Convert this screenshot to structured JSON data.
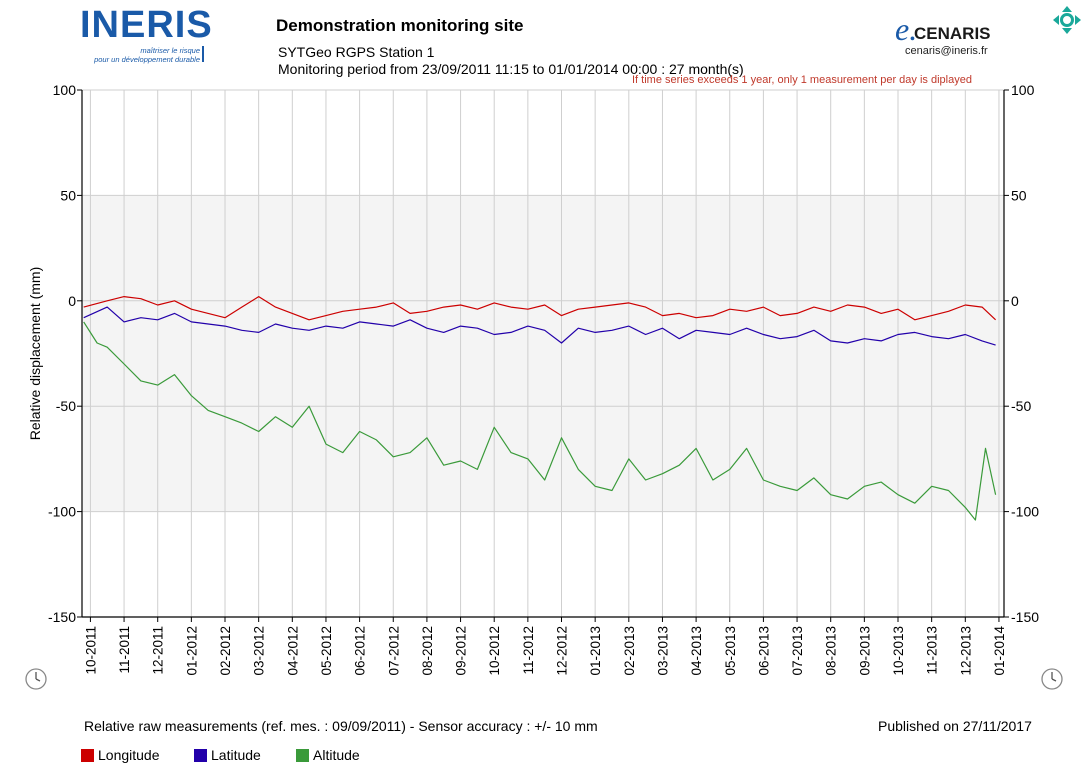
{
  "header": {
    "logo_text": "INERIS",
    "logo_tagline_1": "maîtriser le risque",
    "logo_tagline_2": "pour un développement durable",
    "title": "Demonstration monitoring site",
    "station": "SYTGeo RGPS Station 1",
    "period": "Monitoring period from 23/09/2011 11:15 to 01/01/2014 00:00 : 27 month(s)",
    "warning": "If time series exceeds 1 year, only 1 measurement per day is diplayed",
    "brand_e": "e.",
    "brand_name": "CENARIS",
    "brand_email": "cenaris@ineris.fr"
  },
  "footer": {
    "note": "Relative raw measurements (ref. mes. : 09/09/2011) - Sensor accuracy : +/- 10 mm",
    "published": "Published on 27/11/2017"
  },
  "icons": {
    "move": "move-arrows-icon",
    "clock_left": "clock-icon",
    "clock_right": "clock-icon"
  },
  "colors": {
    "longitude": "#cc0000",
    "latitude": "#2200aa",
    "altitude": "#3a9a3a",
    "band": "#f4f4f4",
    "grid": "#cfcfcf",
    "logo": "#1a5aa8"
  },
  "chart_data": {
    "type": "line",
    "title": "Demonstration monitoring site",
    "xlabel": "",
    "ylabel": "Relative displacement (mm)",
    "ylim": [
      -150,
      100
    ],
    "yticks": [
      100,
      50,
      0,
      -50,
      -100,
      -150
    ],
    "shaded_band": [
      -100,
      50
    ],
    "x_tick_labels": [
      "10-2011",
      "11-2011",
      "12-2011",
      "01-2012",
      "02-2012",
      "03-2012",
      "04-2012",
      "05-2012",
      "06-2012",
      "07-2012",
      "08-2012",
      "09-2012",
      "10-2012",
      "11-2012",
      "12-2012",
      "01-2013",
      "02-2013",
      "03-2013",
      "04-2013",
      "05-2013",
      "06-2013",
      "07-2013",
      "08-2013",
      "09-2013",
      "10-2013",
      "11-2013",
      "12-2013",
      "01-2014"
    ],
    "x_unit": "months since 2011-10-01 (0 = 10-2011, 27 = 01-2014)",
    "xlim": [
      -0.25,
      27.15
    ],
    "legend": [
      "Longitude",
      "Latitude",
      "Altitude"
    ],
    "series": [
      {
        "name": "Longitude",
        "x": [
          -0.2,
          0.5,
          1,
          1.5,
          2,
          2.5,
          3,
          3.5,
          4,
          4.5,
          5,
          5.5,
          6,
          6.5,
          7,
          7.5,
          8,
          8.5,
          9,
          9.5,
          10,
          10.5,
          11,
          11.5,
          12,
          12.5,
          13,
          13.5,
          14,
          14.5,
          15,
          15.5,
          16,
          16.5,
          17,
          17.5,
          18,
          18.5,
          19,
          19.5,
          20,
          20.5,
          21,
          21.5,
          22,
          22.5,
          23,
          23.5,
          24,
          24.5,
          25,
          25.5,
          26,
          26.5,
          26.9
        ],
        "y": [
          -3,
          0,
          2,
          1,
          -2,
          0,
          -4,
          -6,
          -8,
          -3,
          2,
          -3,
          -6,
          -9,
          -7,
          -5,
          -4,
          -3,
          -1,
          -6,
          -5,
          -3,
          -2,
          -4,
          -1,
          -3,
          -4,
          -2,
          -7,
          -4,
          -3,
          -2,
          -1,
          -3,
          -7,
          -6,
          -8,
          -7,
          -4,
          -5,
          -3,
          -7,
          -6,
          -3,
          -5,
          -2,
          -3,
          -6,
          -4,
          -9,
          -7,
          -5,
          -2,
          -3,
          -9
        ]
      },
      {
        "name": "Latitude",
        "x": [
          -0.2,
          0.5,
          1,
          1.5,
          2,
          2.5,
          3,
          3.5,
          4,
          4.5,
          5,
          5.5,
          6,
          6.5,
          7,
          7.5,
          8,
          8.5,
          9,
          9.5,
          10,
          10.5,
          11,
          11.5,
          12,
          12.5,
          13,
          13.5,
          14,
          14.5,
          15,
          15.5,
          16,
          16.5,
          17,
          17.5,
          18,
          18.5,
          19,
          19.5,
          20,
          20.5,
          21,
          21.5,
          22,
          22.5,
          23,
          23.5,
          24,
          24.5,
          25,
          25.5,
          26,
          26.5,
          26.9
        ],
        "y": [
          -8,
          -3,
          -10,
          -8,
          -9,
          -6,
          -10,
          -11,
          -12,
          -14,
          -15,
          -11,
          -13,
          -14,
          -12,
          -13,
          -10,
          -11,
          -12,
          -9,
          -13,
          -15,
          -12,
          -13,
          -16,
          -15,
          -12,
          -14,
          -20,
          -13,
          -15,
          -14,
          -12,
          -16,
          -13,
          -18,
          -14,
          -15,
          -16,
          -13,
          -16,
          -18,
          -17,
          -14,
          -19,
          -20,
          -18,
          -19,
          -16,
          -15,
          -17,
          -18,
          -16,
          -19,
          -21
        ]
      },
      {
        "name": "Altitude",
        "x": [
          -0.2,
          0.2,
          0.5,
          1,
          1.5,
          2,
          2.5,
          3,
          3.5,
          4,
          4.5,
          5,
          5.5,
          6,
          6.5,
          7,
          7.5,
          8,
          8.5,
          9,
          9.5,
          10,
          10.5,
          11,
          11.5,
          12,
          12.5,
          13,
          13.5,
          14,
          14.5,
          15,
          15.5,
          16,
          16.5,
          17,
          17.5,
          18,
          18.5,
          19,
          19.5,
          20,
          20.5,
          21,
          21.5,
          22,
          22.5,
          23,
          23.5,
          24,
          24.5,
          25,
          25.5,
          26,
          26.3,
          26.6,
          26.9
        ],
        "y": [
          -10,
          -20,
          -22,
          -30,
          -38,
          -40,
          -35,
          -45,
          -52,
          -55,
          -58,
          -62,
          -55,
          -60,
          -50,
          -68,
          -72,
          -62,
          -66,
          -74,
          -72,
          -65,
          -78,
          -76,
          -80,
          -60,
          -72,
          -75,
          -85,
          -65,
          -80,
          -88,
          -90,
          -75,
          -85,
          -82,
          -78,
          -70,
          -85,
          -80,
          -70,
          -85,
          -88,
          -90,
          -84,
          -92,
          -94,
          -88,
          -86,
          -92,
          -96,
          -88,
          -90,
          -98,
          -104,
          -70,
          -92
        ]
      }
    ]
  }
}
